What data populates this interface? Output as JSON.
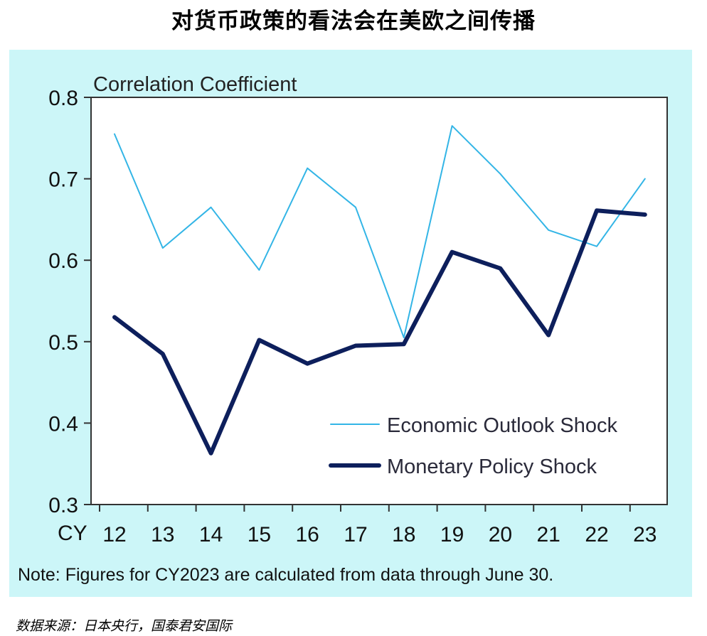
{
  "page": {
    "title": "对货币政策的看法会在美欧之间传播",
    "source": "数据来源：日本央行，国泰君安国际"
  },
  "chart_data": {
    "type": "line",
    "ylabel": "Correlation Coefficient",
    "xlabel": "CY",
    "categories": [
      "12",
      "13",
      "14",
      "15",
      "16",
      "17",
      "18",
      "19",
      "20",
      "21",
      "22",
      "23"
    ],
    "ylim": [
      0.3,
      0.8
    ],
    "yticks": [
      "0.3",
      "0.4",
      "0.5",
      "0.6",
      "0.7",
      "0.8"
    ],
    "grid": false,
    "legend_position": "bottom-right",
    "note": "Note: Figures for CY2023 are calculated from data through June 30.",
    "series": [
      {
        "name": "Economic Outlook Shock",
        "color": "#33b5e6",
        "weight": "thin",
        "values": [
          0.755,
          0.615,
          0.665,
          0.588,
          0.713,
          0.665,
          0.505,
          0.765,
          0.706,
          0.637,
          0.617,
          0.7
        ]
      },
      {
        "name": "Monetary Policy Shock",
        "color": "#0d1f5c",
        "weight": "thick",
        "values": [
          0.53,
          0.485,
          0.363,
          0.502,
          0.473,
          0.495,
          0.497,
          0.61,
          0.59,
          0.508,
          0.661,
          0.656
        ]
      }
    ]
  }
}
